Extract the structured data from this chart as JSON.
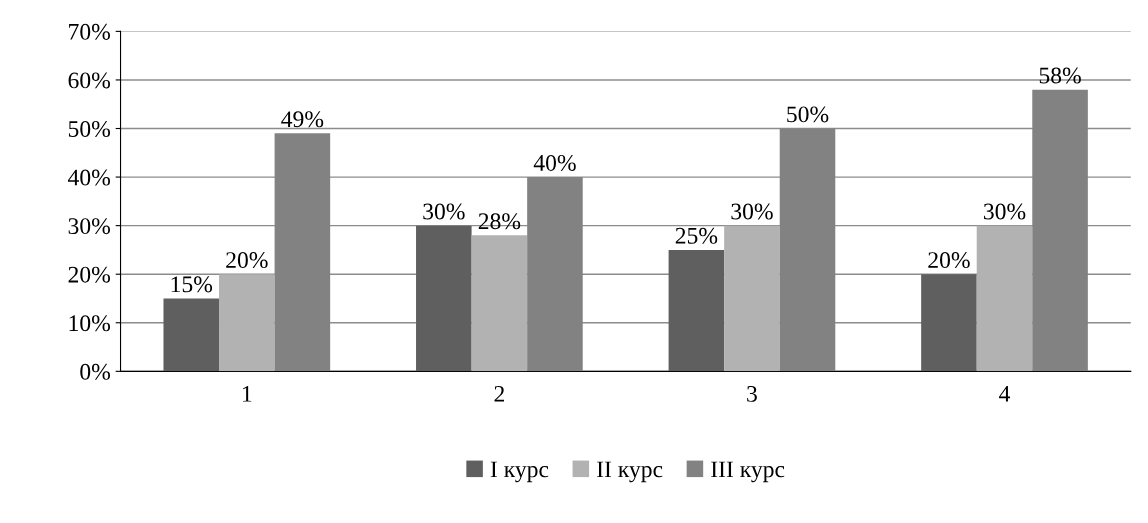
{
  "chart_data": {
    "type": "bar",
    "categories": [
      "1",
      "2",
      "3",
      "4"
    ],
    "series": [
      {
        "name": "I курс",
        "color": "#5f5f5f",
        "values": [
          15,
          30,
          25,
          20
        ],
        "value_labels": [
          "15%",
          "30%",
          "25%",
          "20%"
        ]
      },
      {
        "name": "II курс",
        "color": "#b2b2b2",
        "values": [
          20,
          28,
          30,
          30
        ],
        "value_labels": [
          "20%",
          "28%",
          "30%",
          "30%"
        ]
      },
      {
        "name": "III курс",
        "color": "#828282",
        "values": [
          49,
          40,
          50,
          58
        ],
        "value_labels": [
          "49%",
          "40%",
          "50%",
          "58%"
        ]
      }
    ],
    "ylim": [
      0,
      70
    ],
    "yticks": [
      {
        "value": 0,
        "label": "0%"
      },
      {
        "value": 10,
        "label": "10%"
      },
      {
        "value": 20,
        "label": "20%"
      },
      {
        "value": 30,
        "label": "30%"
      },
      {
        "value": 40,
        "label": "40%"
      },
      {
        "value": 50,
        "label": "50%"
      },
      {
        "value": 60,
        "label": "60%"
      },
      {
        "value": 70,
        "label": "70%"
      }
    ],
    "grid": "y",
    "legend": "bottom"
  }
}
